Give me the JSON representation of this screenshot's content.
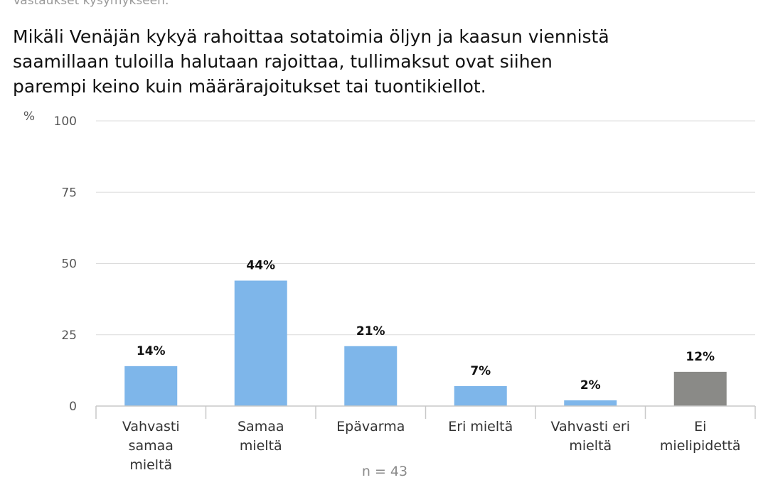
{
  "header": {
    "supertitle": "Vastaukset kysymykseen:",
    "title_lines": [
      "Mikäli Venäjän kykyä rahoittaa sotatoimia öljyn ja kaasun viennistä",
      "saamillaan tuloilla halutaan rajoittaa, tullimaksut ovat siihen",
      "parempi keino kuin määrärajoitukset tai tuontikiellot."
    ]
  },
  "footnote": "n = 43",
  "chart_data": {
    "type": "bar",
    "ylabel": "%",
    "xlabel": "",
    "ylim": [
      0,
      100
    ],
    "yticks": [
      0,
      25,
      50,
      75,
      100
    ],
    "grid": true,
    "categories": [
      [
        "Vahvasti",
        "samaa",
        "mieltä"
      ],
      [
        "Samaa",
        "mieltä"
      ],
      [
        "Epävarma"
      ],
      [
        "Eri mieltä"
      ],
      [
        "Vahvasti eri",
        "mieltä"
      ],
      [
        "Ei",
        "mielipidettä"
      ]
    ],
    "values": [
      14,
      44,
      21,
      7,
      2,
      12
    ],
    "value_labels": [
      "14%",
      "44%",
      "21%",
      "7%",
      "2%",
      "12%"
    ],
    "colors": [
      "#7eb6ea",
      "#7eb6ea",
      "#7eb6ea",
      "#7eb6ea",
      "#7eb6ea",
      "#8a8a87"
    ]
  }
}
